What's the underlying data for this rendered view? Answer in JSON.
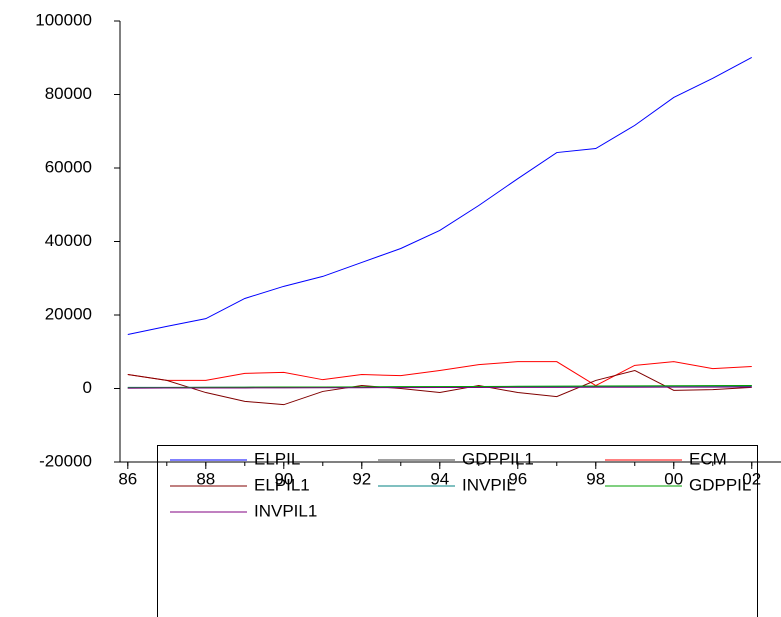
{
  "chart_data": {
    "type": "line",
    "x": [
      1986,
      1987,
      1988,
      1989,
      1990,
      1991,
      1992,
      1993,
      1994,
      1995,
      1996,
      1997,
      1998,
      1999,
      2000,
      2001,
      2002
    ],
    "xlim": [
      1985.8,
      2002.75
    ],
    "xticks": [
      {
        "value": 1986,
        "label": "86"
      },
      {
        "value": 1988,
        "label": "88"
      },
      {
        "value": 1990,
        "label": "90"
      },
      {
        "value": 1992,
        "label": "92"
      },
      {
        "value": 1994,
        "label": "94"
      },
      {
        "value": 1996,
        "label": "96"
      },
      {
        "value": 1998,
        "label": "98"
      },
      {
        "value": 2000,
        "label": "00"
      },
      {
        "value": 2002,
        "label": "02"
      }
    ],
    "ylim": [
      -20000,
      100000
    ],
    "yticks": [
      -20000,
      0,
      20000,
      40000,
      60000,
      80000,
      100000
    ],
    "series": [
      {
        "name": "ELPIL",
        "color": "#0000ff",
        "values": [
          14700,
          16900,
          19000,
          24500,
          27800,
          30500,
          34300,
          38100,
          43000,
          49800,
          57100,
          64200,
          65300,
          71600,
          79200,
          84400,
          90100
        ]
      },
      {
        "name": "GDPPIL1",
        "color": "#404040",
        "values": [
          100,
          150,
          200,
          250,
          300,
          300,
          350,
          400,
          400,
          450,
          500,
          500,
          550,
          600,
          650,
          700,
          750
        ]
      },
      {
        "name": "ECM",
        "color": "#ff0000",
        "values": [
          3800,
          2200,
          2200,
          4100,
          4400,
          2400,
          3800,
          3500,
          4900,
          6500,
          7300,
          7300,
          800,
          6300,
          7300,
          5400,
          6000
        ]
      },
      {
        "name": "ELPIL1",
        "color": "#800000",
        "values": [
          3800,
          2200,
          -1100,
          -3500,
          -4400,
          -800,
          800,
          0,
          -1100,
          800,
          -1100,
          -2200,
          2200,
          4900,
          -500,
          -300,
          300
        ]
      },
      {
        "name": "INVPIL",
        "color": "#008080",
        "values": [
          300,
          320,
          340,
          350,
          380,
          400,
          420,
          450,
          470,
          500,
          520,
          540,
          560,
          580,
          600,
          620,
          650
        ]
      },
      {
        "name": "GDPPIL",
        "color": "#00a000",
        "values": [
          200,
          250,
          300,
          350,
          400,
          420,
          450,
          500,
          520,
          550,
          600,
          650,
          680,
          700,
          750,
          780,
          800
        ]
      },
      {
        "name": "INVPIL1",
        "color": "#800080",
        "values": [
          100,
          120,
          140,
          150,
          170,
          200,
          220,
          250,
          260,
          280,
          300,
          320,
          340,
          350,
          370,
          390,
          400
        ]
      }
    ],
    "legend_columns": 3
  }
}
